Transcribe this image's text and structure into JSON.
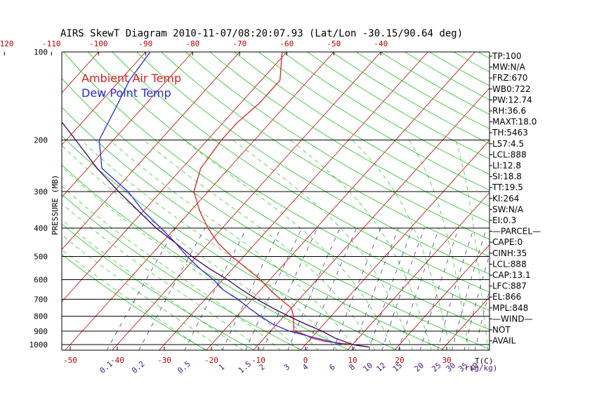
{
  "chart_data": {
    "type": "line",
    "title": "AIRS SkewT Diagram 2010-11-07/08:20:07.93 (Lat/Lon -30.15/90.64 deg)",
    "ylabel": "PRESSURE (MB)",
    "xlabel_unit": "T(C)",
    "mixing_unit": "r(g/kg)",
    "pressure_ticks": [
      100,
      200,
      300,
      400,
      500,
      600,
      700,
      800,
      900,
      1000
    ],
    "pressure_gridlines": [
      100,
      200,
      300,
      400,
      500,
      600,
      700,
      800,
      900,
      1000
    ],
    "bottom_temp_ticks": [
      -50,
      -40,
      -30,
      -20,
      -10,
      0,
      10,
      20,
      30
    ],
    "top_temp_ticks": [
      -120,
      -110,
      -100,
      -90,
      -80,
      -70,
      -60,
      -50,
      -40
    ],
    "mixing_ratio_labels": [
      "0.1",
      "0.2",
      "0.5",
      "1",
      "1.5",
      "2",
      "3",
      "4",
      "6",
      "8",
      "10",
      "12",
      "15",
      "20",
      "25",
      "30",
      "35",
      "40"
    ],
    "mixing_ratio_values": [
      0.1,
      0.2,
      0.5,
      1,
      1.5,
      2,
      3,
      4,
      6,
      8,
      10,
      12,
      15,
      20,
      25,
      30,
      35,
      40
    ],
    "legend": [
      {
        "label": "Ambient Air Temp",
        "color": "#e02020"
      },
      {
        "label": "Dew Point Temp",
        "color": "#2a2ad8"
      }
    ],
    "series": [
      {
        "name": "Ambient Air Temp",
        "color": "#e02020",
        "points": [
          {
            "p": 1020,
            "t": 14.0
          },
          {
            "p": 1000,
            "t": 10.0
          },
          {
            "p": 975,
            "t": 3.5
          },
          {
            "p": 950,
            "t": 0.0
          },
          {
            "p": 925,
            "t": -2.0
          },
          {
            "p": 900,
            "t": -5.0
          },
          {
            "p": 850,
            "t": -6.5
          },
          {
            "p": 800,
            "t": -8.0
          },
          {
            "p": 750,
            "t": -10.0
          },
          {
            "p": 700,
            "t": -14.0
          },
          {
            "p": 650,
            "t": -18.0
          },
          {
            "p": 600,
            "t": -22.0
          },
          {
            "p": 550,
            "t": -27.0
          },
          {
            "p": 500,
            "t": -32.5
          },
          {
            "p": 450,
            "t": -38.0
          },
          {
            "p": 400,
            "t": -43.0
          },
          {
            "p": 350,
            "t": -48.0
          },
          {
            "p": 300,
            "t": -53.0
          },
          {
            "p": 250,
            "t": -56.0
          },
          {
            "p": 200,
            "t": -57.0
          },
          {
            "p": 175,
            "t": -57.0
          },
          {
            "p": 150,
            "t": -56.0
          },
          {
            "p": 125,
            "t": -56.0
          },
          {
            "p": 100,
            "t": -61.0
          }
        ]
      },
      {
        "name": "Dew Point Temp",
        "color": "#2a2ad8",
        "points": [
          {
            "p": 1000,
            "t": 8.0
          },
          {
            "p": 950,
            "t": 1.0
          },
          {
            "p": 900,
            "t": -6.0
          },
          {
            "p": 850,
            "t": -11.0
          },
          {
            "p": 800,
            "t": -15.0
          },
          {
            "p": 750,
            "t": -19.0
          },
          {
            "p": 700,
            "t": -23.0
          },
          {
            "p": 650,
            "t": -28.0
          },
          {
            "p": 600,
            "t": -32.0
          },
          {
            "p": 550,
            "t": -37.0
          },
          {
            "p": 500,
            "t": -42.0
          },
          {
            "p": 450,
            "t": -47.0
          },
          {
            "p": 400,
            "t": -53.0
          },
          {
            "p": 350,
            "t": -60.0
          },
          {
            "p": 300,
            "t": -67.0
          },
          {
            "p": 250,
            "t": -77.0
          },
          {
            "p": 200,
            "t": -83.0
          },
          {
            "p": 150,
            "t": -86.0
          },
          {
            "p": 125,
            "t": -88.0
          },
          {
            "p": 100,
            "t": -89.0
          }
        ]
      },
      {
        "name": "Parcel",
        "color": "#3a005a",
        "points": [
          {
            "p": 1020,
            "t": 14.0
          },
          {
            "p": 1000,
            "t": 10.0
          },
          {
            "p": 950,
            "t": 5.0
          },
          {
            "p": 900,
            "t": 1.0
          },
          {
            "p": 850,
            "t": -4.0
          },
          {
            "p": 800,
            "t": -9.0
          },
          {
            "p": 750,
            "t": -14.0
          },
          {
            "p": 700,
            "t": -19.0
          },
          {
            "p": 650,
            "t": -24.0
          },
          {
            "p": 600,
            "t": -29.0
          },
          {
            "p": 550,
            "t": -35.0
          },
          {
            "p": 500,
            "t": -41.0
          },
          {
            "p": 450,
            "t": -47.0
          },
          {
            "p": 400,
            "t": -54.0
          },
          {
            "p": 350,
            "t": -61.0
          },
          {
            "p": 300,
            "t": -69.0
          },
          {
            "p": 250,
            "t": -78.0
          },
          {
            "p": 200,
            "t": -88.0
          },
          {
            "p": 150,
            "t": -101.0
          },
          {
            "p": 125,
            "t": -109.0
          },
          {
            "p": 100,
            "t": -118.0
          }
        ]
      }
    ],
    "indices": [
      "TP:100",
      "MW:N/A",
      "FRZ:670",
      "WB0:722",
      "PW:12.74",
      "RH:36.6",
      "MAXT:18.0",
      "TH:5463",
      "L57:4.5",
      "LCL:888",
      "LI:12.8",
      "SI:18.8",
      "TT:19.5",
      "KI:264",
      "SW:N/A",
      "EI:0.3",
      "—PARCEL—",
      "CAPE:0",
      "CINH:35",
      "LCL:888",
      "CAP:13.1",
      "LFC:887",
      "EL:866",
      "MPL:848",
      "—WIND—",
      "NOT",
      "AVAIL"
    ],
    "colors": {
      "temp_line": "#e02020",
      "dew_line": "#2a2ad8",
      "parcel_line": "#3a005a",
      "isotherm": "#c00000",
      "dry_adiabat": "#22c022",
      "moist_adiabat": "#22c022",
      "mixing_ratio": "#4b3a8c",
      "isobar": "#000000",
      "bottom_tick_labels": "#c00000",
      "top_tick_labels": "#c00000",
      "mixing_labels": "#4b1a7a"
    }
  }
}
